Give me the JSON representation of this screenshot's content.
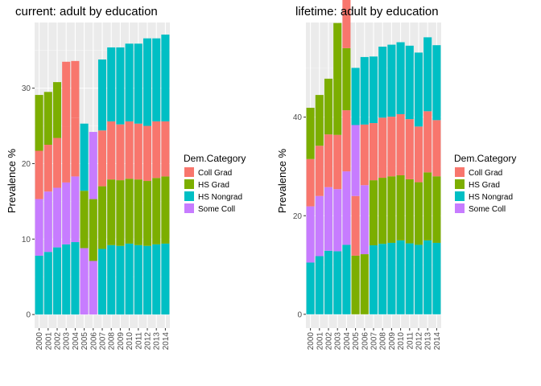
{
  "chart_data": [
    {
      "type": "bar",
      "stacked": true,
      "title": "current: adult by education",
      "xlabel": "",
      "ylabel": "Prevalence %",
      "categories": [
        "2000",
        "2001",
        "2002",
        "2003",
        "2004",
        "2005",
        "2006",
        "2007",
        "2008",
        "2009",
        "2010",
        "2011",
        "2012",
        "2013",
        "2014"
      ],
      "yticks": [
        0,
        10,
        20,
        30
      ],
      "ylim": [
        -1.8,
        38.7
      ],
      "legend_title": "Dem.Category",
      "legend_position": "right",
      "series": [
        {
          "name": "HS Nongrad",
          "color": "#00BFC4",
          "values": [
            7.8,
            8.3,
            8.9,
            9.3,
            9.6,
            0,
            0,
            8.7,
            9.2,
            9.1,
            9.4,
            9.2,
            9.1,
            9.3,
            9.4
          ]
        },
        {
          "name": "Some Coll",
          "color": "#C77CFF",
          "values": [
            7.5,
            8.0,
            7.9,
            8.2,
            8.7,
            8.8,
            7.1,
            0,
            0,
            0,
            0,
            0,
            0,
            0,
            0
          ]
        },
        {
          "name": "HS Grad",
          "color": "#7CAE00",
          "values": [
            0,
            0,
            0,
            0,
            0,
            7.6,
            8.2,
            8.3,
            8.7,
            8.7,
            8.6,
            8.7,
            8.6,
            8.8,
            8.9
          ]
        },
        {
          "name": "Coll Grad",
          "color": "#F8766D",
          "values": [
            6.4,
            6.2,
            6.6,
            7.4,
            7.8,
            0,
            0,
            7.4,
            7.7,
            7.4,
            7.6,
            7.4,
            7.3,
            7.5,
            7.3
          ]
        },
        {
          "name": "HS Grad",
          "color": "#7CAE00",
          "values": [
            7.4,
            7.0,
            7.4,
            0,
            0,
            0,
            0,
            0,
            0,
            0,
            0,
            0,
            0,
            0,
            0
          ]
        },
        {
          "name": "HS Nongrad",
          "color": "#00BFC4",
          "values": [
            0,
            0,
            0,
            0,
            0,
            8.9,
            0,
            0,
            0,
            0,
            0,
            0,
            0,
            0,
            0
          ]
        },
        {
          "name": "Coll Grad",
          "color": "#F8766D",
          "values": [
            0,
            0,
            0,
            8.6,
            7.5,
            0,
            0,
            0,
            0,
            0,
            0,
            0,
            0,
            0,
            0
          ]
        },
        {
          "name": "Some Coll",
          "color": "#C77CFF",
          "values": [
            0,
            0,
            0,
            0,
            0,
            0,
            8.9,
            0,
            0,
            0,
            0,
            0,
            0,
            0,
            0
          ]
        },
        {
          "name": "HS Nongrad",
          "color": "#00BFC4",
          "values": [
            0,
            0,
            0,
            0,
            0,
            0,
            0,
            9.4,
            9.8,
            10.2,
            10.3,
            10.6,
            11.6,
            11.0,
            11.5
          ]
        },
        {
          "name": "HS Grad",
          "color": "#7CAE00",
          "values": [
            0,
            0,
            0,
            0,
            0,
            0,
            0,
            0,
            0,
            0,
            0,
            0,
            0,
            0,
            0
          ]
        }
      ]
    },
    {
      "type": "bar",
      "stacked": true,
      "title": "lifetime: adult by education",
      "xlabel": "",
      "ylabel": "Prevalence %",
      "categories": [
        "2000",
        "2001",
        "2002",
        "2003",
        "2004",
        "2005",
        "2006",
        "2007",
        "2008",
        "2009",
        "2010",
        "2011",
        "2012",
        "2013",
        "2014"
      ],
      "yticks": [
        0,
        20,
        40
      ],
      "ylim": [
        -2.8,
        59.2
      ],
      "legend_title": "Dem.Category",
      "legend_position": "right",
      "series": [
        {
          "name": "HS Nongrad",
          "color": "#00BFC4",
          "values": [
            10.5,
            11.8,
            12.9,
            12.8,
            14.1,
            0,
            0,
            14.0,
            14.3,
            14.5,
            15.0,
            14.4,
            14.1,
            15.0,
            14.5
          ]
        },
        {
          "name": "Some Coll",
          "color": "#C77CFF",
          "values": [
            11.4,
            12.2,
            12.9,
            12.6,
            14.9,
            0,
            0,
            0,
            0,
            0,
            0,
            0,
            0,
            0,
            0
          ]
        },
        {
          "name": "HS Grad",
          "color": "#7CAE00",
          "values": [
            0,
            0,
            0,
            0,
            0,
            11.9,
            12.2,
            13.2,
            13.4,
            13.5,
            13.2,
            13.0,
            12.7,
            13.8,
            13.5
          ]
        },
        {
          "name": "Coll Grad",
          "color": "#F8766D",
          "values": [
            9.6,
            10.2,
            10.7,
            11.0,
            12.4,
            0,
            0,
            11.6,
            12.2,
            12.1,
            12.4,
            12.2,
            11.3,
            12.4,
            11.4
          ]
        },
        {
          "name": "HS Grad",
          "color": "#7CAE00",
          "values": [
            10.4,
            10.3,
            11.3,
            11.3,
            0,
            0,
            0,
            0,
            0,
            0,
            0,
            0,
            0,
            0,
            0
          ]
        },
        {
          "name": "HS Nongrad",
          "color": "#00BFC4",
          "values": [
            0,
            0,
            0,
            0,
            0,
            0,
            0,
            13.5,
            14.4,
            14.6,
            14.6,
            14.9,
            15.0,
            15.0,
            15.2
          ]
        },
        {
          "name": "Coll Grad",
          "color": "#F8766D",
          "values": [
            0,
            0,
            0,
            0,
            0,
            12.1,
            0,
            0,
            0,
            0,
            0,
            0,
            0,
            0,
            0
          ]
        },
        {
          "name": "Some Coll",
          "color": "#C77CFF",
          "values": [
            0,
            0,
            0,
            0,
            0,
            14.4,
            14.0,
            0,
            0,
            0,
            0,
            0,
            0,
            0,
            0
          ]
        },
        {
          "name": "HS Nongrad",
          "color": "#00BFC4",
          "values": [
            0,
            0,
            0,
            0,
            0,
            11.6,
            0,
            0,
            0,
            0,
            0,
            0,
            0,
            0,
            0
          ]
        },
        {
          "name": "HS Grad",
          "color": "#7CAE00",
          "values": [
            0,
            0,
            0,
            0,
            12.6,
            0,
            0,
            0,
            0,
            0,
            0,
            0,
            0,
            0,
            0
          ]
        },
        {
          "name": "HS Grad",
          "color": "#7CAE00",
          "values": [
            0,
            0,
            0,
            11.4,
            0,
            0,
            0,
            0,
            0,
            0,
            0,
            0,
            0,
            0,
            0
          ]
        },
        {
          "name": "Coll Grad",
          "color": "#F8766D",
          "values": [
            0,
            0,
            0,
            0,
            0,
            0,
            12.3,
            0,
            0,
            0,
            0,
            0,
            0,
            0,
            0
          ]
        },
        {
          "name": "HS Nongrad",
          "color": "#00BFC4",
          "values": [
            0,
            0,
            0,
            0,
            0,
            0,
            13.7,
            0,
            0,
            0,
            0,
            0,
            0,
            0,
            0
          ]
        },
        {
          "name": "Coll Grad",
          "color": "#F8766D",
          "values": [
            0,
            0,
            0,
            0,
            12.2,
            0,
            0,
            0,
            0,
            0,
            0,
            0,
            0,
            0,
            0
          ]
        }
      ]
    }
  ],
  "legend": {
    "title": "Dem.Category",
    "items": [
      {
        "label": "Coll Grad",
        "color": "#F8766D"
      },
      {
        "label": "HS Grad",
        "color": "#7CAE00"
      },
      {
        "label": "HS Nongrad",
        "color": "#00BFC4"
      },
      {
        "label": "Some Coll",
        "color": "#C77CFF"
      }
    ]
  }
}
